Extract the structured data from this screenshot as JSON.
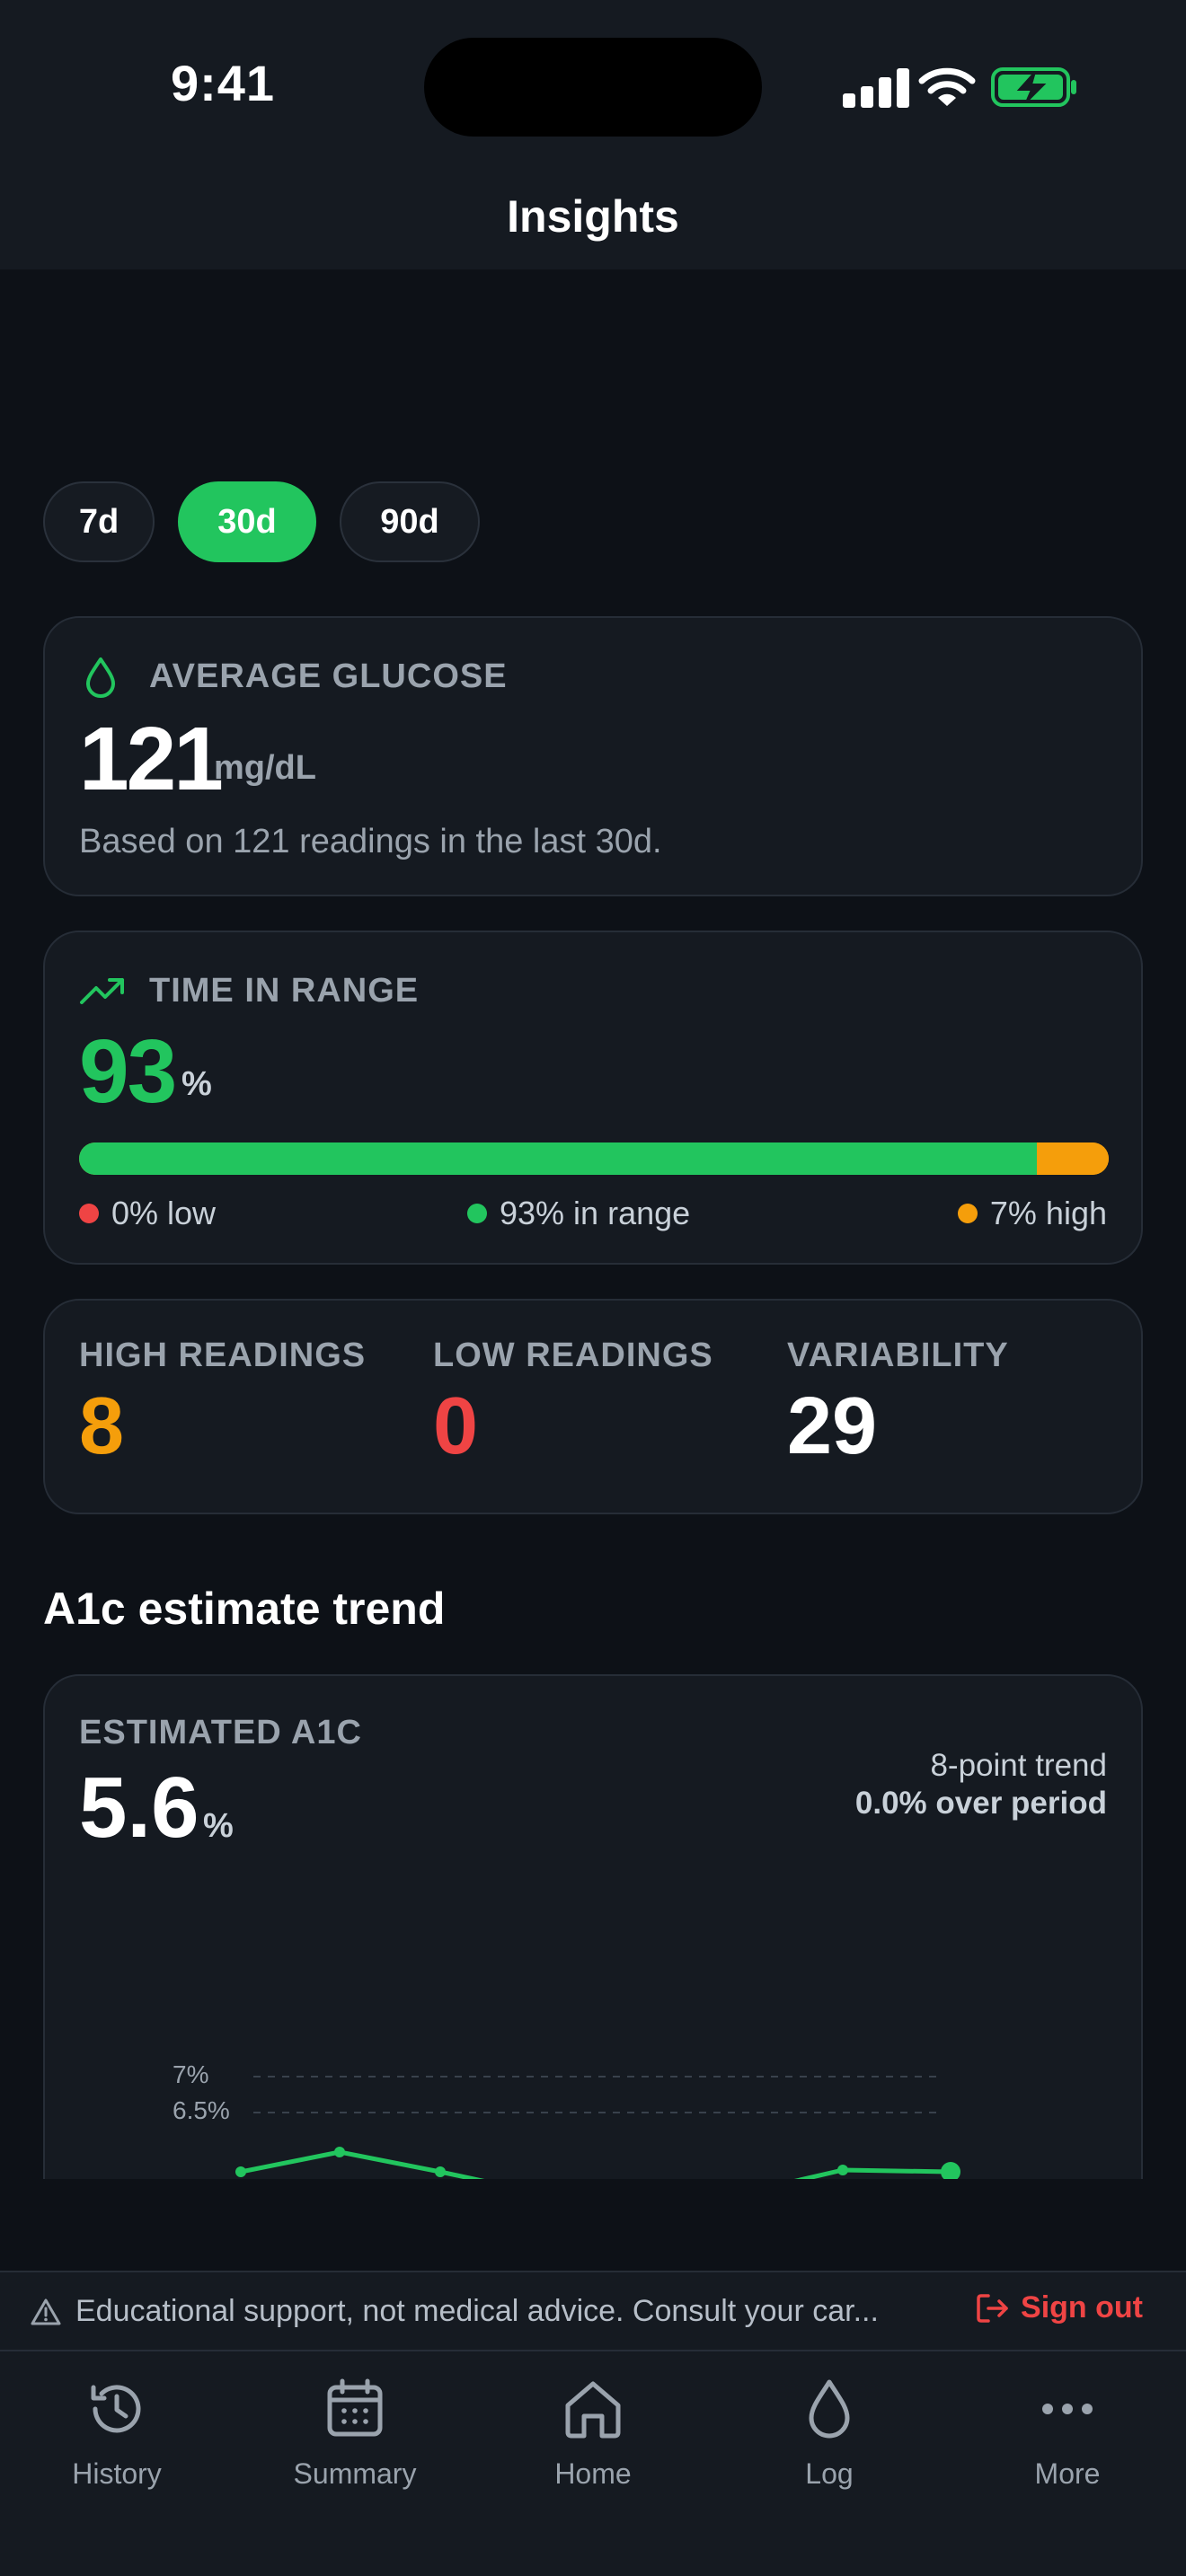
{
  "status_bar": {
    "time": "9:41"
  },
  "header": {
    "title": "Insights"
  },
  "range_pills": [
    {
      "label": "7d",
      "active": false
    },
    {
      "label": "30d",
      "active": true
    },
    {
      "label": "90d",
      "active": false
    }
  ],
  "avg_glucose": {
    "label": "AVERAGE GLUCOSE",
    "value": "121",
    "unit": "mg/dL",
    "note": "Based on 121 readings in the last 30d."
  },
  "time_in_range": {
    "label": "TIME IN RANGE",
    "value": "93",
    "unit": "%",
    "in_range_fraction": 0.93,
    "high_fraction": 0.07,
    "legend": {
      "low": "0% low",
      "in_range": "93% in range",
      "high": "7% high"
    }
  },
  "stats": [
    {
      "label": "HIGH READINGS",
      "value": "8"
    },
    {
      "label": "LOW READINGS",
      "value": "0"
    },
    {
      "label": "VARIABILITY",
      "value": "29"
    }
  ],
  "a1c_section": {
    "title": "A1c estimate trend"
  },
  "a1c_card": {
    "label": "ESTIMATED A1C",
    "value": "5.6",
    "unit": "%",
    "trend_points": "8-point trend",
    "trend_change": "0.0% over period",
    "y_labels": [
      "7%",
      "6.5%"
    ]
  },
  "disclaimer": {
    "text": "Educational support, not medical advice. Consult your car...",
    "sign_out": "Sign out"
  },
  "tabs": [
    {
      "label": "History"
    },
    {
      "label": "Summary"
    },
    {
      "label": "Home"
    },
    {
      "label": "Log"
    },
    {
      "label": "More"
    }
  ],
  "colors": {
    "accent_green": "#22c55e",
    "high_orange": "#f59e0b",
    "low_red": "#ef4444",
    "background": "#0d1117",
    "card": "#151a21"
  }
}
